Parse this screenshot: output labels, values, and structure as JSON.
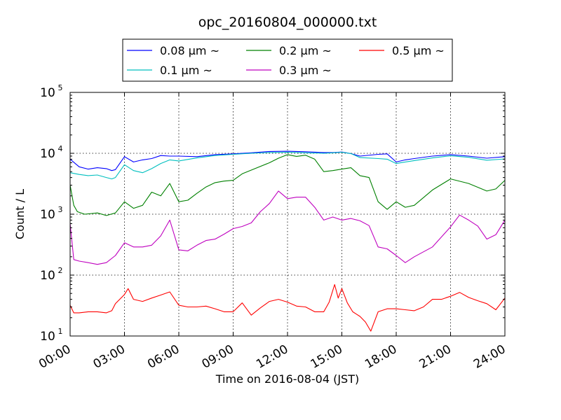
{
  "chart_data": {
    "type": "line",
    "title": "opc_20160804_000000.txt",
    "xlabel": "Time on 2016-08-04 (JST)",
    "ylabel": "Count / L",
    "yscale": "log",
    "x_unit": "hours",
    "xlim": [
      0,
      24
    ],
    "ylim": [
      10,
      100000
    ],
    "x_ticks": [
      {
        "value": 0,
        "label": "00:00"
      },
      {
        "value": 3,
        "label": "03:00"
      },
      {
        "value": 6,
        "label": "06:00"
      },
      {
        "value": 9,
        "label": "09:00"
      },
      {
        "value": 12,
        "label": "12:00"
      },
      {
        "value": 15,
        "label": "15:00"
      },
      {
        "value": 18,
        "label": "18:00"
      },
      {
        "value": 21,
        "label": "21:00"
      },
      {
        "value": 24,
        "label": "24:00"
      }
    ],
    "y_ticks": [
      {
        "value": 10,
        "base": "10",
        "exp": "1"
      },
      {
        "value": 100,
        "base": "10",
        "exp": "2"
      },
      {
        "value": 1000,
        "base": "10",
        "exp": "3"
      },
      {
        "value": 10000,
        "base": "10",
        "exp": "4"
      },
      {
        "value": 100000,
        "base": "10",
        "exp": "5"
      }
    ],
    "grid": true,
    "legend": {
      "placement": "top-center",
      "columns": 3
    },
    "series": [
      {
        "name": "0.08 μm ~",
        "color": "#0000ff",
        "x": [
          0,
          0.5,
          1,
          1.5,
          2,
          2.3,
          2.5,
          3,
          3.5,
          4,
          4.5,
          5,
          5.5,
          6,
          7,
          8,
          9,
          10,
          11,
          12,
          13,
          14,
          14.5,
          15,
          15.5,
          16,
          17,
          17.5,
          18,
          18.5,
          19,
          20,
          21,
          22,
          23,
          24
        ],
        "y": [
          8000,
          6000,
          5500,
          5800,
          5600,
          5200,
          5400,
          8800,
          7200,
          7800,
          8200,
          9200,
          9000,
          9000,
          8800,
          9500,
          9800,
          10200,
          10700,
          10800,
          10600,
          10300,
          10300,
          10500,
          9900,
          9000,
          9600,
          9800,
          7200,
          7800,
          8200,
          9000,
          9500,
          9000,
          8300,
          8800
        ]
      },
      {
        "name": "0.1 μm ~",
        "color": "#00bfbf",
        "x": [
          0,
          0.5,
          1,
          1.5,
          2,
          2.3,
          2.5,
          3,
          3.5,
          4,
          4.5,
          5,
          5.5,
          6,
          7,
          8,
          9,
          10,
          11,
          12,
          13,
          14,
          14.5,
          15,
          15.5,
          16,
          17,
          17.5,
          18,
          18.5,
          19,
          20,
          21,
          22,
          23,
          24
        ],
        "y": [
          4800,
          4500,
          4300,
          4400,
          4000,
          3800,
          4000,
          6500,
          5200,
          4800,
          5600,
          6800,
          7800,
          7500,
          8400,
          9200,
          9600,
          10000,
          10300,
          10400,
          10200,
          10000,
          10200,
          10400,
          9900,
          8500,
          8200,
          8000,
          6800,
          7200,
          7600,
          8400,
          9100,
          8600,
          7700,
          8100
        ]
      },
      {
        "name": "0.2 μm ~",
        "color": "#008000",
        "x": [
          0,
          0.2,
          0.4,
          0.8,
          1.5,
          2,
          2.5,
          3,
          3.5,
          4,
          4.5,
          5,
          5.5,
          6,
          6.5,
          7,
          7.5,
          8,
          8.5,
          9,
          9.5,
          10,
          11,
          11.5,
          12,
          12.5,
          13,
          13.5,
          14,
          14.5,
          15,
          15.5,
          16,
          16.5,
          17,
          17.5,
          18,
          18.5,
          19,
          20,
          21,
          22,
          23,
          23.5,
          24
        ],
        "y": [
          3000,
          1400,
          1100,
          1000,
          1050,
          950,
          1050,
          1600,
          1250,
          1400,
          2300,
          2000,
          3200,
          1600,
          1700,
          2200,
          2800,
          3300,
          3500,
          3600,
          4600,
          5300,
          7000,
          8300,
          9500,
          8900,
          9300,
          8000,
          5000,
          5200,
          5500,
          5800,
          4300,
          4000,
          1600,
          1200,
          1600,
          1300,
          1400,
          2500,
          3800,
          3200,
          2400,
          2600,
          3600
        ]
      },
      {
        "name": "0.3 μm ~",
        "color": "#bf00bf",
        "x": [
          0,
          0.2,
          0.5,
          1,
          1.5,
          2,
          2.5,
          3,
          3.5,
          4,
          4.5,
          5,
          5.5,
          6,
          6.5,
          7,
          7.5,
          8,
          8.5,
          9,
          9.5,
          10,
          10.5,
          11,
          11.5,
          12,
          12.5,
          13,
          13.5,
          14,
          14.5,
          15,
          15.5,
          16,
          16.5,
          17,
          17.5,
          18,
          18.5,
          19,
          20,
          21,
          21.5,
          22,
          22.5,
          23,
          23.5,
          24
        ],
        "y": [
          700,
          180,
          170,
          160,
          150,
          160,
          210,
          340,
          290,
          290,
          310,
          440,
          800,
          260,
          250,
          310,
          370,
          390,
          470,
          580,
          630,
          720,
          1100,
          1500,
          2400,
          1800,
          1900,
          1900,
          1300,
          800,
          900,
          800,
          850,
          780,
          650,
          290,
          270,
          210,
          160,
          200,
          290,
          620,
          970,
          800,
          640,
          390,
          460,
          800
        ]
      },
      {
        "name": "0.5 μm ~",
        "color": "#ff0000",
        "x": [
          0,
          0.2,
          0.5,
          1,
          1.5,
          2,
          2.3,
          2.5,
          3,
          3.2,
          3.5,
          4,
          4.5,
          5,
          5.5,
          6,
          6.5,
          7,
          7.5,
          8,
          8.5,
          9,
          9.5,
          10,
          10.5,
          11,
          11.5,
          12,
          12.5,
          13,
          13.5,
          14,
          14.3,
          14.6,
          14.8,
          15,
          15.3,
          15.6,
          16,
          16.3,
          16.6,
          17,
          17.5,
          18,
          18.5,
          19,
          19.5,
          20,
          20.5,
          21,
          21.5,
          22,
          22.5,
          23,
          23.5,
          24
        ],
        "y": [
          32,
          24,
          24,
          25,
          25,
          24,
          26,
          34,
          48,
          60,
          40,
          37,
          42,
          47,
          53,
          32,
          30,
          30,
          31,
          28,
          25,
          25,
          35,
          22,
          29,
          37,
          40,
          36,
          31,
          30,
          25,
          25,
          36,
          70,
          42,
          60,
          35,
          25,
          21,
          17,
          12,
          25,
          28,
          28,
          27,
          26,
          30,
          40,
          40,
          45,
          52,
          43,
          38,
          34,
          27,
          42
        ]
      }
    ]
  }
}
